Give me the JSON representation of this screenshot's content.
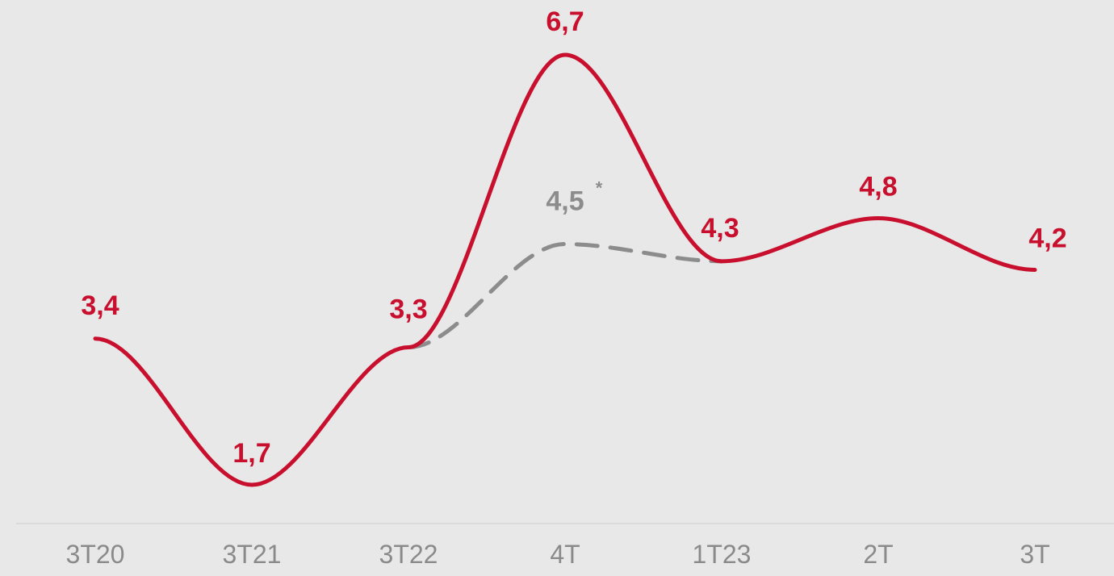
{
  "chart_data": {
    "type": "line",
    "categories": [
      "3T20",
      "3T21",
      "3T22",
      "4T",
      "1T23",
      "2T",
      "3T"
    ],
    "ylim": [
      0,
      7.5
    ],
    "series": [
      {
        "values": [
          3.4,
          1.7,
          3.3,
          6.7,
          4.3,
          4.8,
          4.2
        ],
        "labels": [
          "3,4",
          "1,7",
          "3,3",
          "6,7",
          "4,3",
          "4,8",
          "4,2"
        ],
        "color": "#c8102e",
        "style": "solid"
      },
      {
        "x": [
          "3T22",
          "4T",
          "1T23"
        ],
        "values": [
          3.3,
          4.5,
          4.3
        ],
        "labels": [
          "",
          "4,5",
          ""
        ],
        "label_note": "*",
        "color": "#8c8c8c",
        "style": "dashed"
      }
    ]
  },
  "colors": {
    "background": "#e8e8e8",
    "baseline": "#d6d6d6",
    "tick_label": "#8a8a8a"
  }
}
